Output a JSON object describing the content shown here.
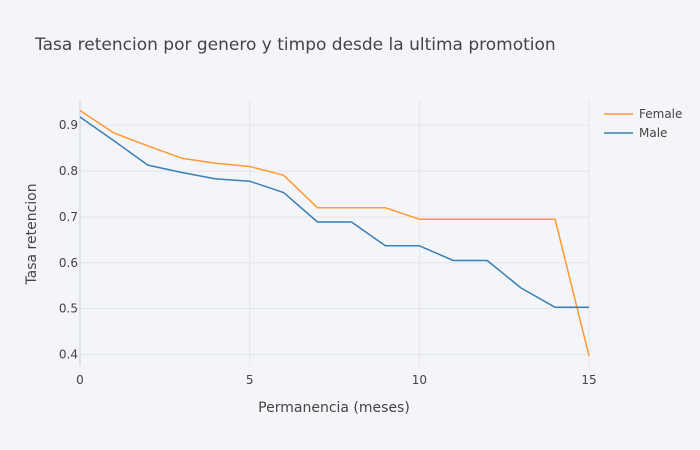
{
  "chart_data": {
    "type": "line",
    "title": "Tasa retencion por genero y timpo desde la ultima promotion",
    "xlabel": "Permanencia (meses)",
    "ylabel": "Tasa retencion",
    "xlim": [
      0,
      15
    ],
    "ylim": [
      0.375,
      0.955
    ],
    "x_ticks": [
      "0",
      "5",
      "10",
      "15"
    ],
    "y_ticks": [
      "0.4",
      "0.5",
      "0.6",
      "0.7",
      "0.8",
      "0.9"
    ],
    "grid": true,
    "legend_position": "top-right",
    "series": [
      {
        "name": "Female",
        "color": "#ff9933",
        "x": [
          0,
          1,
          2,
          3,
          4,
          5,
          6,
          7,
          8,
          9,
          10,
          11,
          12,
          13,
          14,
          15
        ],
        "values": [
          0.932,
          0.883,
          0.855,
          0.828,
          0.817,
          0.81,
          0.791,
          0.72,
          0.72,
          0.72,
          0.695,
          0.695,
          0.695,
          0.695,
          0.695,
          0.397
        ]
      },
      {
        "name": "Male",
        "color": "#3a7fb5",
        "x": [
          0,
          1,
          2,
          3,
          4,
          5,
          6,
          7,
          8,
          9,
          10,
          11,
          12,
          13,
          14,
          15
        ],
        "values": [
          0.918,
          0.866,
          0.813,
          0.797,
          0.783,
          0.778,
          0.753,
          0.689,
          0.689,
          0.637,
          0.637,
          0.605,
          0.605,
          0.545,
          0.503,
          0.503
        ]
      }
    ]
  }
}
